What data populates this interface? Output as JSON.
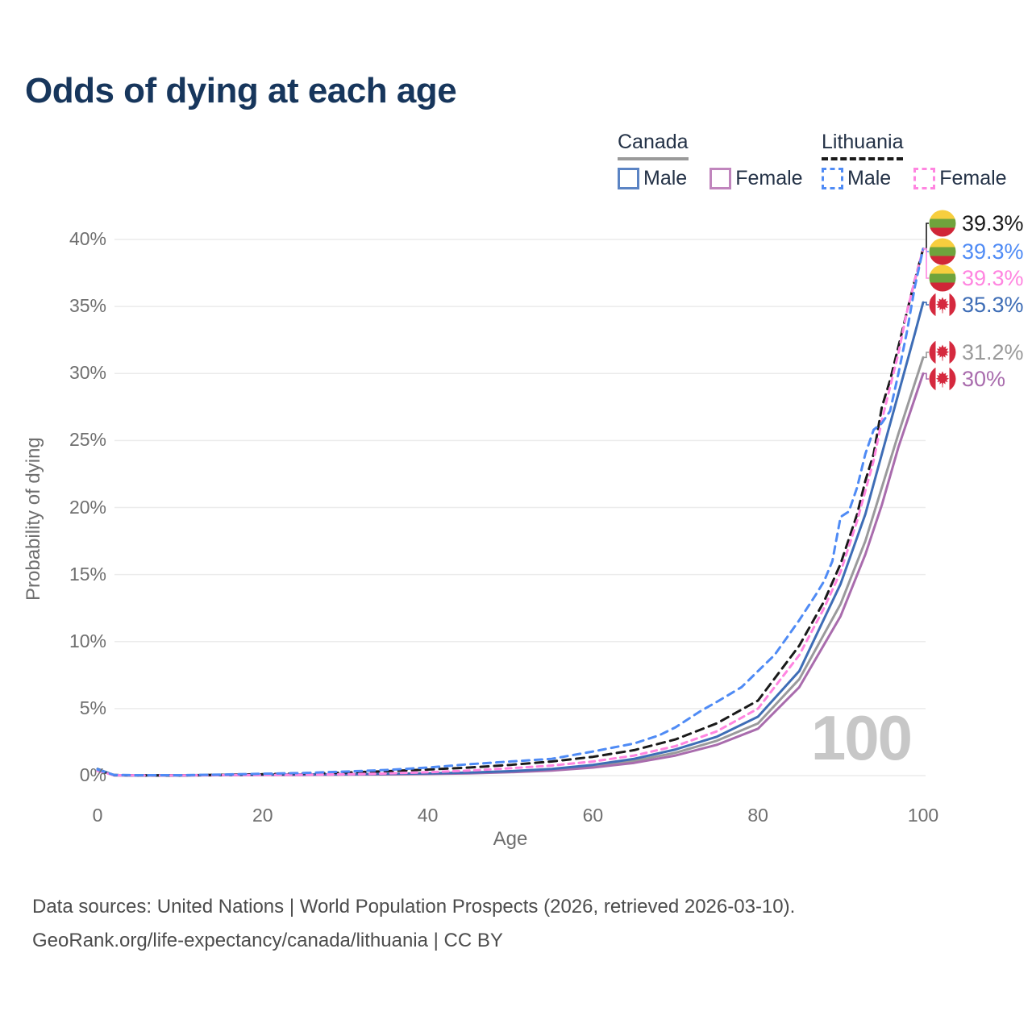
{
  "title": "Odds of dying at each age",
  "watermark": "100",
  "colors": {
    "title_text": "#17365c",
    "legend_text": "#243247",
    "axis_text": "#6f6f6f",
    "grid": "#ebebeb",
    "footer_text": "#4c4c4c",
    "watermark": "#c7c7c7",
    "canada_flag_red": "#d5293e",
    "lithuania_flag_yellow": "#f7ce3e",
    "lithuania_flag_green": "#6fa33c",
    "lithuania_flag_red": "#d02637"
  },
  "legend": {
    "groups": [
      {
        "label": "Canada",
        "line_style": "solid",
        "underline_color": "#9a9a9a",
        "items": [
          {
            "label": "Male",
            "color": "#5b84c4"
          },
          {
            "label": "Female",
            "color": "#c085bd"
          }
        ]
      },
      {
        "label": "Lithuania",
        "line_style": "dashed",
        "underline_color": "#1a1a1a",
        "items": [
          {
            "label": "Male",
            "color": "#4f8bf5"
          },
          {
            "label": "Female",
            "color": "#ff85e0"
          }
        ]
      }
    ]
  },
  "end_labels": [
    {
      "value": "39.3%",
      "flag": "lithuania",
      "series": "lithuania-total",
      "color": "#1a1a1a"
    },
    {
      "value": "39.3%",
      "flag": "lithuania",
      "series": "lithuania-male",
      "color": "#4f8bf5"
    },
    {
      "value": "39.3%",
      "flag": "lithuania",
      "series": "lithuania-female",
      "color": "#ff85e0"
    },
    {
      "value": "35.3%",
      "flag": "canada",
      "series": "canada-male",
      "color": "#3e6db6"
    },
    {
      "value": "31.2%",
      "flag": "canada",
      "series": "canada-total",
      "color": "#9a9a9a"
    },
    {
      "value": "30%",
      "flag": "canada",
      "series": "canada-female",
      "color": "#a96cad"
    }
  ],
  "footer": {
    "line1": "Data sources: United Nations | World Population Prospects (2026, retrieved 2026-03-10).",
    "line2": "GeoRank.org/life-expectancy/canada/lithuania | CC BY"
  },
  "chart_data": {
    "type": "line",
    "title": "Odds of dying at each age",
    "xlabel": "Age",
    "ylabel": "Probability of dying",
    "xlim": [
      0,
      100
    ],
    "ylim": [
      0,
      40
    ],
    "y_unit": "%",
    "x_ticks": [
      0,
      20,
      40,
      60,
      80,
      100
    ],
    "y_ticks": [
      "0%",
      "5%",
      "10%",
      "15%",
      "20%",
      "25%",
      "30%",
      "35%",
      "40%"
    ],
    "grid": "horizontal-only",
    "legend_position": "top-right",
    "series": [
      {
        "key": "canada-total",
        "name": "Canada (both sexes)",
        "country": "Canada",
        "sex": "total",
        "color": "#9a9a9b",
        "dash": "none",
        "end_value_pct": 31.2,
        "points": [
          [
            0,
            0.48
          ],
          [
            2,
            0.03
          ],
          [
            5,
            0.02
          ],
          [
            10,
            0.02
          ],
          [
            15,
            0.04
          ],
          [
            20,
            0.06
          ],
          [
            25,
            0.07
          ],
          [
            30,
            0.09
          ],
          [
            35,
            0.11
          ],
          [
            40,
            0.14
          ],
          [
            45,
            0.2
          ],
          [
            50,
            0.29
          ],
          [
            55,
            0.45
          ],
          [
            60,
            0.7
          ],
          [
            65,
            1.1
          ],
          [
            70,
            1.7
          ],
          [
            75,
            2.6
          ],
          [
            80,
            3.9
          ],
          [
            85,
            7.2
          ],
          [
            90,
            12.8
          ],
          [
            93,
            17.5
          ],
          [
            95,
            21.5
          ],
          [
            97,
            25.5
          ],
          [
            100,
            31.2
          ]
        ]
      },
      {
        "key": "canada-female",
        "name": "Canada female",
        "country": "Canada",
        "sex": "female",
        "color": "#a96cad",
        "dash": "none",
        "end_value_pct": 30,
        "points": [
          [
            0,
            0.45
          ],
          [
            2,
            0.02
          ],
          [
            5,
            0.01
          ],
          [
            10,
            0.01
          ],
          [
            15,
            0.03
          ],
          [
            20,
            0.04
          ],
          [
            25,
            0.05
          ],
          [
            30,
            0.07
          ],
          [
            35,
            0.09
          ],
          [
            40,
            0.12
          ],
          [
            45,
            0.17
          ],
          [
            50,
            0.25
          ],
          [
            55,
            0.38
          ],
          [
            60,
            0.6
          ],
          [
            65,
            0.95
          ],
          [
            70,
            1.5
          ],
          [
            75,
            2.3
          ],
          [
            80,
            3.5
          ],
          [
            85,
            6.6
          ],
          [
            90,
            11.9
          ],
          [
            93,
            16.5
          ],
          [
            95,
            20.2
          ],
          [
            97,
            24.5
          ],
          [
            100,
            30
          ]
        ]
      },
      {
        "key": "canada-male",
        "name": "Canada male",
        "country": "Canada",
        "sex": "male",
        "color": "#3e6db6",
        "dash": "none",
        "end_value_pct": 35.3,
        "points": [
          [
            0,
            0.5
          ],
          [
            2,
            0.03
          ],
          [
            5,
            0.02
          ],
          [
            10,
            0.02
          ],
          [
            15,
            0.05
          ],
          [
            20,
            0.08
          ],
          [
            25,
            0.09
          ],
          [
            30,
            0.11
          ],
          [
            35,
            0.13
          ],
          [
            40,
            0.17
          ],
          [
            45,
            0.23
          ],
          [
            50,
            0.33
          ],
          [
            55,
            0.5
          ],
          [
            60,
            0.8
          ],
          [
            65,
            1.25
          ],
          [
            70,
            1.95
          ],
          [
            75,
            2.9
          ],
          [
            80,
            4.4
          ],
          [
            85,
            7.8
          ],
          [
            90,
            14.3
          ],
          [
            93,
            19.5
          ],
          [
            95,
            24
          ],
          [
            97,
            28.5
          ],
          [
            99,
            33
          ],
          [
            100,
            35.3
          ]
        ]
      },
      {
        "key": "lithuania-total",
        "name": "Lithuania (both sexes)",
        "country": "Lithuania",
        "sex": "total",
        "color": "#1a1a1a",
        "dash": "10 7",
        "end_value_pct": 39.3,
        "points": [
          [
            0,
            0.4
          ],
          [
            2,
            0.04
          ],
          [
            5,
            0.02
          ],
          [
            10,
            0.02
          ],
          [
            15,
            0.06
          ],
          [
            20,
            0.1
          ],
          [
            25,
            0.15
          ],
          [
            30,
            0.22
          ],
          [
            35,
            0.33
          ],
          [
            40,
            0.45
          ],
          [
            45,
            0.6
          ],
          [
            50,
            0.8
          ],
          [
            55,
            1.05
          ],
          [
            60,
            1.4
          ],
          [
            65,
            1.9
          ],
          [
            70,
            2.7
          ],
          [
            75,
            3.9
          ],
          [
            80,
            5.6
          ],
          [
            85,
            9.7
          ],
          [
            88,
            13
          ],
          [
            90,
            15.8
          ],
          [
            92,
            19.5
          ],
          [
            93,
            22
          ],
          [
            94,
            24
          ],
          [
            95,
            27.5
          ],
          [
            96,
            29.5
          ],
          [
            97,
            32
          ],
          [
            98,
            34.5
          ],
          [
            99,
            37
          ],
          [
            100,
            39.3
          ]
        ]
      },
      {
        "key": "lithuania-female",
        "name": "Lithuania female",
        "country": "Lithuania",
        "sex": "female",
        "color": "#ff85e0",
        "dash": "7 6",
        "end_value_pct": 39.3,
        "points": [
          [
            0,
            0.35
          ],
          [
            2,
            0.03
          ],
          [
            5,
            0.02
          ],
          [
            10,
            0.02
          ],
          [
            15,
            0.04
          ],
          [
            20,
            0.05
          ],
          [
            25,
            0.07
          ],
          [
            30,
            0.1
          ],
          [
            35,
            0.16
          ],
          [
            40,
            0.25
          ],
          [
            45,
            0.38
          ],
          [
            50,
            0.55
          ],
          [
            55,
            0.75
          ],
          [
            60,
            1.05
          ],
          [
            65,
            1.5
          ],
          [
            70,
            2.2
          ],
          [
            75,
            3.3
          ],
          [
            80,
            5
          ],
          [
            85,
            9
          ],
          [
            88,
            12.5
          ],
          [
            90,
            15.2
          ],
          [
            92,
            19
          ],
          [
            94,
            23.5
          ],
          [
            95,
            26.5
          ],
          [
            96,
            29
          ],
          [
            97,
            31.5
          ],
          [
            98,
            34.5
          ],
          [
            99,
            37
          ],
          [
            100,
            39.3
          ]
        ]
      },
      {
        "key": "lithuania-male",
        "name": "Lithuania male",
        "country": "Lithuania",
        "sex": "male",
        "color": "#4f8bf5",
        "dash": "9 7",
        "end_value_pct": 39.3,
        "points": [
          [
            0,
            0.45
          ],
          [
            2,
            0.05
          ],
          [
            5,
            0.03
          ],
          [
            10,
            0.03
          ],
          [
            15,
            0.08
          ],
          [
            20,
            0.14
          ],
          [
            25,
            0.2
          ],
          [
            30,
            0.3
          ],
          [
            35,
            0.42
          ],
          [
            40,
            0.6
          ],
          [
            45,
            0.85
          ],
          [
            50,
            1.05
          ],
          [
            55,
            1.25
          ],
          [
            60,
            1.8
          ],
          [
            65,
            2.4
          ],
          [
            68,
            3
          ],
          [
            70,
            3.6
          ],
          [
            73,
            4.8
          ],
          [
            75,
            5.5
          ],
          [
            78,
            6.6
          ],
          [
            80,
            7.8
          ],
          [
            82,
            9
          ],
          [
            85,
            11.6
          ],
          [
            87,
            13.5
          ],
          [
            88,
            14.5
          ],
          [
            89,
            16
          ],
          [
            90,
            19.3
          ],
          [
            91,
            19.7
          ],
          [
            92,
            21.5
          ],
          [
            93,
            24
          ],
          [
            94,
            25.8
          ],
          [
            95,
            26.3
          ],
          [
            96,
            27.2
          ],
          [
            97,
            30
          ],
          [
            98,
            33
          ],
          [
            99,
            36.5
          ],
          [
            100,
            39.3
          ]
        ]
      }
    ]
  }
}
